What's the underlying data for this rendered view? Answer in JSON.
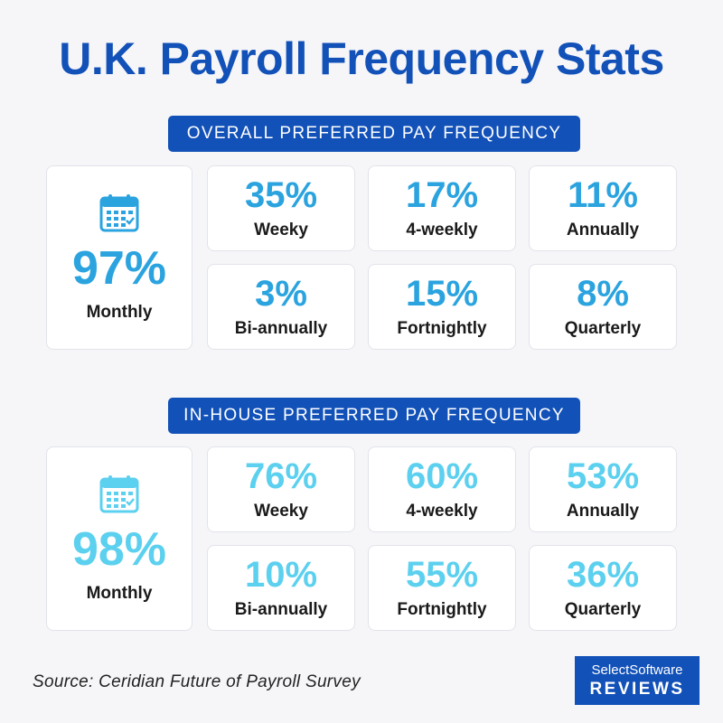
{
  "title": "U.K. Payroll Frequency Stats",
  "colors": {
    "brand": "#1251b8",
    "overall_accent": "#2aa3df",
    "inhouse_accent": "#5cd0ef"
  },
  "sections": [
    {
      "heading": "OVERALL PREFERRED PAY FREQUENCY",
      "icon": "calendar-icon",
      "main": {
        "value": "97%",
        "label": "Monthly"
      },
      "stats": [
        {
          "value": "35%",
          "label": "Weeky"
        },
        {
          "value": "17%",
          "label": "4-weekly"
        },
        {
          "value": "11%",
          "label": "Annually"
        },
        {
          "value": "3%",
          "label": "Bi-annually"
        },
        {
          "value": "15%",
          "label": "Fortnightly"
        },
        {
          "value": "8%",
          "label": "Quarterly"
        }
      ]
    },
    {
      "heading": "IN-HOUSE PREFERRED PAY FREQUENCY",
      "icon": "calendar-icon",
      "main": {
        "value": "98%",
        "label": "Monthly"
      },
      "stats": [
        {
          "value": "76%",
          "label": "Weeky"
        },
        {
          "value": "60%",
          "label": "4-weekly"
        },
        {
          "value": "53%",
          "label": "Annually"
        },
        {
          "value": "10%",
          "label": "Bi-annually"
        },
        {
          "value": "55%",
          "label": "Fortnightly"
        },
        {
          "value": "36%",
          "label": "Quarterly"
        }
      ]
    }
  ],
  "source": "Source: Ceridian Future of Payroll Survey",
  "logo": {
    "line1": "SelectSoftware",
    "line2": "REVIEWS"
  }
}
